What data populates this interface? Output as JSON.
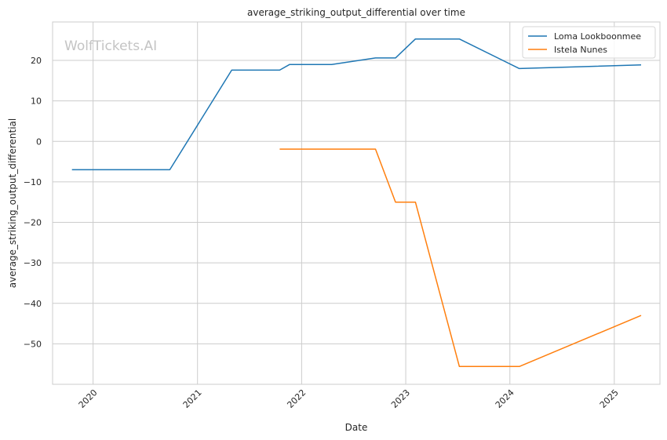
{
  "watermark": "WolfTickets.AI",
  "chart_data": {
    "type": "line",
    "title": "average_striking_output_differential over time",
    "xlabel": "Date",
    "ylabel": "average_striking_output_differential",
    "x_ticks": [
      "2020",
      "2021",
      "2022",
      "2023",
      "2024",
      "2025"
    ],
    "y_ticks": [
      20,
      10,
      0,
      -10,
      -20,
      -30,
      -40,
      -50
    ],
    "y_tick_labels": [
      "20",
      "10",
      "0",
      "−10",
      "−20",
      "−30",
      "−40",
      "−50"
    ],
    "xlim": [
      "2019-08-12",
      "2025-06-10"
    ],
    "ylim": [
      -60,
      29.5
    ],
    "grid": true,
    "legend_position": "top-right",
    "series": [
      {
        "name": "Loma Lookboonmee",
        "color": "#1f77b4",
        "points": [
          [
            "2019-10-19",
            -7.0
          ],
          [
            "2020-09-26",
            -7.0
          ],
          [
            "2021-05-01",
            17.6
          ],
          [
            "2021-10-16",
            17.6
          ],
          [
            "2021-11-20",
            19.0
          ],
          [
            "2022-04-16",
            19.0
          ],
          [
            "2022-09-17",
            20.6
          ],
          [
            "2022-11-26",
            20.6
          ],
          [
            "2023-02-04",
            25.3
          ],
          [
            "2023-07-08",
            25.3
          ],
          [
            "2024-02-03",
            18.0
          ],
          [
            "2025-04-05",
            18.9
          ]
        ]
      },
      {
        "name": "Istela Nunes",
        "color": "#ff7f0e",
        "points": [
          [
            "2021-10-16",
            -1.9
          ],
          [
            "2022-09-17",
            -1.9
          ],
          [
            "2022-11-26",
            -15.0
          ],
          [
            "2023-02-04",
            -15.0
          ],
          [
            "2023-07-08",
            -55.6
          ],
          [
            "2024-02-03",
            -55.6
          ],
          [
            "2025-04-05",
            -43.0
          ]
        ]
      }
    ]
  }
}
